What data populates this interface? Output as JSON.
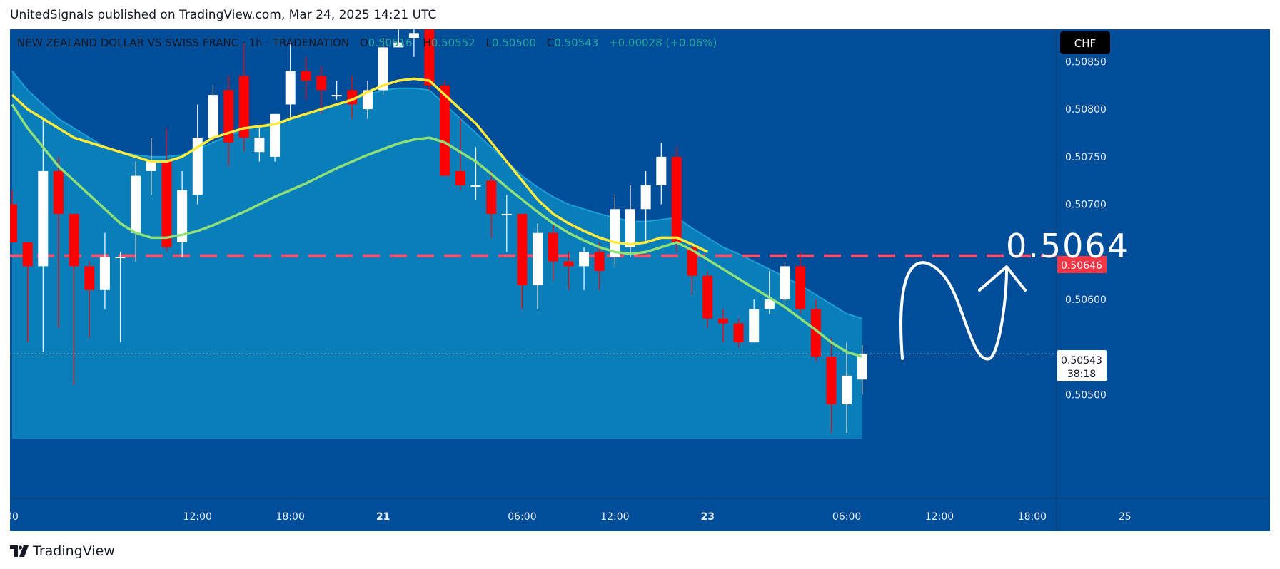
{
  "header": {
    "published_line": "UnitedSignals published on TradingView.com, Mar 24, 2025 14:21 UTC"
  },
  "legend": {
    "symbol_line": "NEW ZEALAND DOLLAR VS SWISS FRANC · 1h · TRADENATION",
    "o_label": "O",
    "o_value": "0.50516",
    "h_label": "H",
    "h_value": "0.50552",
    "l_label": "L",
    "l_value": "0.50500",
    "c_label": "C",
    "c_value": "0.50543",
    "change": "+0.00028 (+0.06%)"
  },
  "currency_badge": "CHF",
  "price_badges": {
    "level": "0.50646",
    "last": "0.50543",
    "countdown": "38:18"
  },
  "annotation": {
    "target_text": "0.5064"
  },
  "footer": {
    "brand": "TradingView"
  },
  "colors": {
    "background": "#004d99",
    "band_fill": "#0a84bd",
    "bull_candle": "#ffffff",
    "bear_candle": "#ff0000",
    "ema_fast": "#ffeb3b",
    "ema_slow": "#90e07a",
    "level_line": "#ff4d6d"
  },
  "chart_data": {
    "type": "candlestick",
    "interval": "1h",
    "y_axis": {
      "ticks": [
        "0.50850",
        "0.50800",
        "0.50750",
        "0.50700",
        "0.50600",
        "0.50500"
      ],
      "ylim": [
        0.50454,
        0.50884
      ]
    },
    "x_axis": {
      "ticks": [
        {
          "label": "00",
          "i": 0
        },
        {
          "label": "12:00",
          "i": 12
        },
        {
          "label": "18:00",
          "i": 18
        },
        {
          "label": "21",
          "i": 24
        },
        {
          "label": "06:00",
          "i": 33
        },
        {
          "label": "12:00",
          "i": 39
        },
        {
          "label": "23",
          "i": 45
        },
        {
          "label": "06:00",
          "i": 54
        },
        {
          "label": "12:00",
          "i": 60
        },
        {
          "label": "18:00",
          "i": 66
        },
        {
          "label": "25",
          "i": 72
        }
      ]
    },
    "candles": [
      [
        0.507,
        0.50715,
        0.5066,
        0.5066
      ],
      [
        0.5066,
        0.5066,
        0.50555,
        0.50635
      ],
      [
        0.50635,
        0.5079,
        0.50545,
        0.50735
      ],
      [
        0.50735,
        0.5075,
        0.5057,
        0.5069
      ],
      [
        0.5069,
        0.5069,
        0.5051,
        0.50635
      ],
      [
        0.50635,
        0.5064,
        0.5056,
        0.5061
      ],
      [
        0.5061,
        0.5067,
        0.5059,
        0.50645
      ],
      [
        0.50645,
        0.5065,
        0.50555,
        0.50645
      ],
      [
        0.5067,
        0.50745,
        0.5064,
        0.5073
      ],
      [
        0.50735,
        0.5077,
        0.5071,
        0.50745
      ],
      [
        0.50745,
        0.5078,
        0.5065,
        0.50655
      ],
      [
        0.5066,
        0.50735,
        0.50645,
        0.50715
      ],
      [
        0.5071,
        0.50805,
        0.507,
        0.5077
      ],
      [
        0.5077,
        0.50825,
        0.50765,
        0.50815
      ],
      [
        0.5082,
        0.50835,
        0.5074,
        0.50765
      ],
      [
        0.50835,
        0.5087,
        0.50755,
        0.5077
      ],
      [
        0.50755,
        0.5078,
        0.50745,
        0.5077
      ],
      [
        0.5075,
        0.50795,
        0.50745,
        0.50795
      ],
      [
        0.50805,
        0.5087,
        0.5079,
        0.5084
      ],
      [
        0.5084,
        0.50855,
        0.5081,
        0.5083
      ],
      [
        0.50835,
        0.50845,
        0.50795,
        0.5082
      ],
      [
        0.50815,
        0.5083,
        0.5081,
        0.50815
      ],
      [
        0.5082,
        0.50835,
        0.5079,
        0.50805
      ],
      [
        0.508,
        0.5083,
        0.5079,
        0.5082
      ],
      [
        0.5082,
        0.50875,
        0.50815,
        0.50865
      ],
      [
        0.50865,
        0.5089,
        0.50865,
        0.5087
      ],
      [
        0.50875,
        0.5089,
        0.50855,
        0.5088
      ],
      [
        0.50895,
        0.509,
        0.5082,
        0.50825
      ],
      [
        0.50825,
        0.5083,
        0.5073,
        0.5073
      ],
      [
        0.50735,
        0.5079,
        0.50715,
        0.5072
      ],
      [
        0.5072,
        0.5076,
        0.50705,
        0.5072
      ],
      [
        0.50725,
        0.50735,
        0.50665,
        0.5069
      ],
      [
        0.5069,
        0.5071,
        0.5065,
        0.5069
      ],
      [
        0.5069,
        0.5069,
        0.5059,
        0.50615
      ],
      [
        0.50615,
        0.5068,
        0.5059,
        0.5067
      ],
      [
        0.5067,
        0.5068,
        0.5062,
        0.5064
      ],
      [
        0.5064,
        0.5065,
        0.5061,
        0.50635
      ],
      [
        0.50635,
        0.50655,
        0.5061,
        0.5065
      ],
      [
        0.5065,
        0.5066,
        0.5061,
        0.5063
      ],
      [
        0.50645,
        0.5071,
        0.50635,
        0.50695
      ],
      [
        0.50655,
        0.5072,
        0.50645,
        0.50695
      ],
      [
        0.50695,
        0.50735,
        0.5066,
        0.5072
      ],
      [
        0.5072,
        0.50765,
        0.507,
        0.5075
      ],
      [
        0.5075,
        0.5076,
        0.5065,
        0.5066
      ],
      [
        0.50655,
        0.50655,
        0.50605,
        0.50625
      ],
      [
        0.50625,
        0.5063,
        0.5057,
        0.5058
      ],
      [
        0.5058,
        0.5059,
        0.50555,
        0.50575
      ],
      [
        0.50575,
        0.5058,
        0.5055,
        0.50555
      ],
      [
        0.50555,
        0.506,
        0.50555,
        0.5059
      ],
      [
        0.5059,
        0.5063,
        0.50585,
        0.506
      ],
      [
        0.506,
        0.5064,
        0.50595,
        0.50635
      ],
      [
        0.50635,
        0.5065,
        0.50585,
        0.5059
      ],
      [
        0.5059,
        0.506,
        0.50535,
        0.5054
      ],
      [
        0.5054,
        0.5056,
        0.5046,
        0.5049
      ],
      [
        0.5049,
        0.50555,
        0.5046,
        0.5052
      ],
      [
        0.50516,
        0.50552,
        0.505,
        0.50543
      ]
    ],
    "ema_fast": [
      0.50815,
      0.508,
      0.5079,
      0.5078,
      0.5077,
      0.50765,
      0.5076,
      0.50755,
      0.5075,
      0.50745,
      0.50745,
      0.5075,
      0.5076,
      0.5077,
      0.50775,
      0.5078,
      0.50782,
      0.50784,
      0.5079,
      0.50795,
      0.508,
      0.50805,
      0.5081,
      0.50818,
      0.50825,
      0.5083,
      0.50832,
      0.5083,
      0.50815,
      0.508,
      0.50785,
      0.50765,
      0.50745,
      0.50725,
      0.50705,
      0.5069,
      0.5068,
      0.50672,
      0.50665,
      0.5066,
      0.50658,
      0.5066,
      0.50665,
      0.50665,
      0.50658,
      0.5065,
      0.5064,
      0.5063,
      0.50622,
      0.50615,
      0.5061,
      0.50605,
      0.50598,
      0.50585,
      0.50575,
      0.5057
    ],
    "ema_slow": [
      0.50805,
      0.5078,
      0.5076,
      0.5074,
      0.50725,
      0.5071,
      0.50695,
      0.5068,
      0.5067,
      0.50665,
      0.50665,
      0.50668,
      0.50672,
      0.50678,
      0.50685,
      0.50692,
      0.507,
      0.50708,
      0.50715,
      0.50722,
      0.5073,
      0.50738,
      0.50745,
      0.50752,
      0.50758,
      0.50764,
      0.50768,
      0.5077,
      0.50765,
      0.50755,
      0.50745,
      0.50732,
      0.50718,
      0.50705,
      0.50692,
      0.5068,
      0.5067,
      0.50662,
      0.50655,
      0.5065,
      0.50648,
      0.5065,
      0.50655,
      0.5066,
      0.50652,
      0.50642,
      0.50632,
      0.50622,
      0.50612,
      0.50602,
      0.50592,
      0.5058,
      0.50568,
      0.50555,
      0.50545,
      0.5054
    ],
    "band_upper": [
      0.5084,
      0.5082,
      0.50805,
      0.5079,
      0.5078,
      0.5077,
      0.5076,
      0.50755,
      0.50752,
      0.5075,
      0.5075,
      0.50752,
      0.50758,
      0.50765,
      0.50772,
      0.50778,
      0.50782,
      0.50786,
      0.5079,
      0.50795,
      0.508,
      0.50805,
      0.5081,
      0.50815,
      0.5082,
      0.50822,
      0.50822,
      0.5082,
      0.50805,
      0.5079,
      0.50775,
      0.5076,
      0.50745,
      0.5073,
      0.50718,
      0.50708,
      0.507,
      0.50695,
      0.5069,
      0.50686,
      0.50682,
      0.50682,
      0.50684,
      0.50686,
      0.50675,
      0.50665,
      0.50655,
      0.50648,
      0.5064,
      0.50632,
      0.50624,
      0.50615,
      0.50605,
      0.50595,
      0.50585,
      0.5058
    ],
    "level": 0.50646,
    "last_price": 0.50543
  }
}
